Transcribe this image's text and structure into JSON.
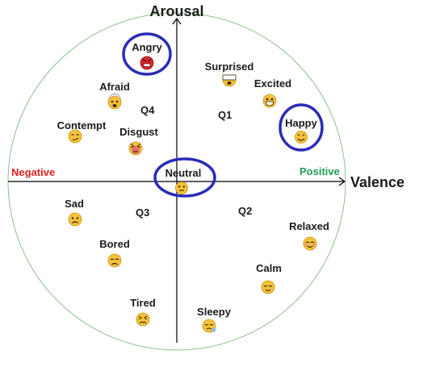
{
  "axes": {
    "vertical": "Arousal",
    "horizontal": "Valence",
    "negative": "Negative",
    "positive": "Positive"
  },
  "quadrants": [
    "Q1",
    "Q2",
    "Q3",
    "Q4"
  ],
  "emotions": [
    {
      "label": "Angry",
      "icon": "angry-face-icon",
      "circled": true
    },
    {
      "label": "Afraid",
      "icon": "afraid-face-icon",
      "circled": false
    },
    {
      "label": "Contempt",
      "icon": "contempt-face-icon",
      "circled": false
    },
    {
      "label": "Disgust",
      "icon": "disgust-face-icon",
      "circled": false
    },
    {
      "label": "Surprised",
      "icon": "surprised-face-icon",
      "circled": false
    },
    {
      "label": "Excited",
      "icon": "excited-face-icon",
      "circled": false
    },
    {
      "label": "Happy",
      "icon": "happy-face-icon",
      "circled": true
    },
    {
      "label": "Neutral",
      "icon": "neutral-face-icon",
      "circled": true
    },
    {
      "label": "Sad",
      "icon": "sad-face-icon",
      "circled": false
    },
    {
      "label": "Bored",
      "icon": "bored-face-icon",
      "circled": false
    },
    {
      "label": "Tired",
      "icon": "tired-face-icon",
      "circled": false
    },
    {
      "label": "Relaxed",
      "icon": "relaxed-face-icon",
      "circled": false
    },
    {
      "label": "Calm",
      "icon": "calm-face-icon",
      "circled": false
    },
    {
      "label": "Sleepy",
      "icon": "sleepy-face-icon",
      "circled": false
    }
  ],
  "colors": {
    "circle": "#8cc08c",
    "highlight": "#2b2bb8",
    "negative": "#e02020",
    "positive": "#1f9d55",
    "face": "#f6c23a",
    "angry_face": "#d7262a"
  }
}
